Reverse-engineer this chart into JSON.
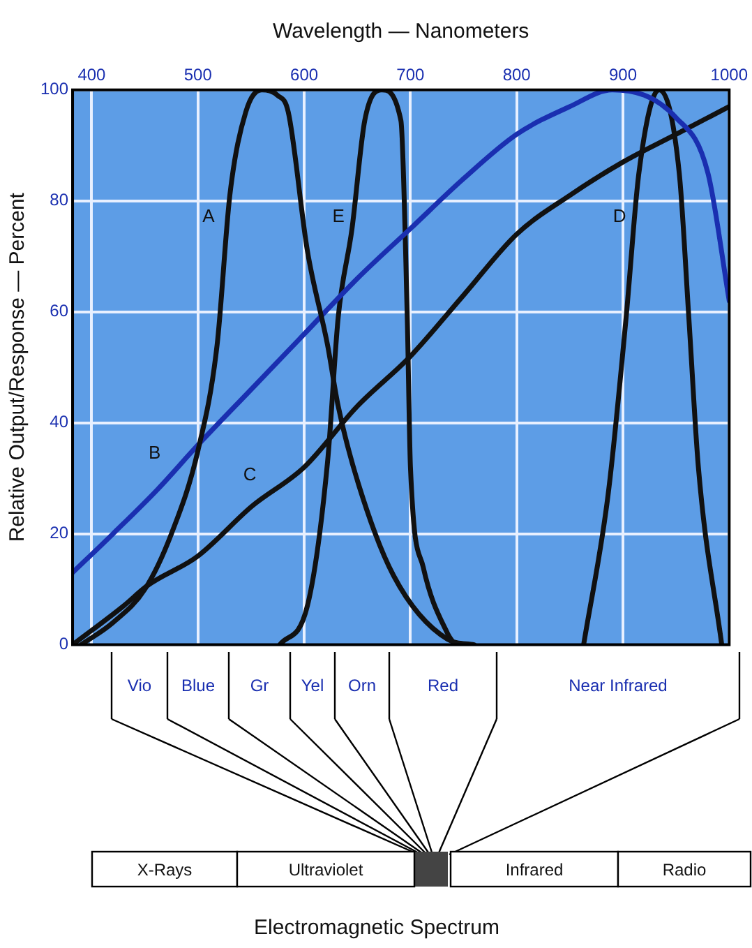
{
  "chart_data": {
    "type": "line",
    "xlabel": "Wavelength — Nanometers",
    "ylabel": "Relative Output/Response — Percent",
    "xlim": [
      382,
      1000
    ],
    "xticks": [
      400,
      500,
      600,
      700,
      800,
      900,
      1000
    ],
    "ylim": [
      0,
      100
    ],
    "yticks": [
      0,
      20,
      40,
      60,
      80,
      100
    ],
    "grid": true,
    "legend": false,
    "marker": "none",
    "line_style": "solid",
    "series": [
      {
        "name": "A",
        "color": "#111111",
        "x": [
          390,
          420,
          450,
          475,
          500,
          518,
          530,
          545,
          560,
          575,
          585,
          603,
          622,
          632,
          651,
          684,
          735,
          760
        ],
        "values": [
          0,
          4,
          10,
          20,
          35,
          54,
          81,
          96,
          100,
          99,
          96,
          71,
          54,
          43,
          29,
          12.5,
          1,
          0
        ]
      },
      {
        "name": "B",
        "color": "#1a2fb0",
        "x": [
          382,
          420,
          462,
          500,
          550,
          600,
          650,
          700,
          750,
          800,
          850,
          890,
          950,
          980,
          1000
        ],
        "values": [
          13,
          20,
          28,
          36,
          46,
          56,
          66,
          75,
          84,
          92,
          97,
          100,
          95,
          85,
          62
        ]
      },
      {
        "name": "C",
        "color": "#111111",
        "x": [
          382,
          430,
          452,
          500,
          551,
          600,
          650,
          700,
          750,
          800,
          850,
          900,
          950,
          1000
        ],
        "values": [
          0,
          7,
          10.6,
          16,
          25,
          32,
          43,
          52,
          63,
          74,
          81,
          87,
          92,
          97
        ]
      },
      {
        "name": "D",
        "color": "#111111",
        "x": [
          863,
          886,
          903,
          915,
          934,
          953,
          962,
          971,
          993
        ],
        "values": [
          0,
          27,
          59,
          85,
          100,
          85,
          59,
          32,
          0
        ]
      },
      {
        "name": "E",
        "color": "#111111",
        "x": [
          577,
          603,
          622,
          632,
          645,
          657,
          673,
          691,
          697,
          700,
          712,
          735,
          742
        ],
        "values": [
          0,
          7,
          33,
          59,
          75,
          94.5,
          100,
          94.5,
          59,
          32,
          14,
          2,
          0
        ]
      }
    ],
    "annotations": [
      "Vio",
      "Blue",
      "Gr",
      "Yel",
      "Orn",
      "Red",
      "Near Infrared",
      "X-Rays",
      "Ultraviolet",
      "Infrared",
      "Radio",
      "Electromagnetic Spectrum"
    ]
  }
}
